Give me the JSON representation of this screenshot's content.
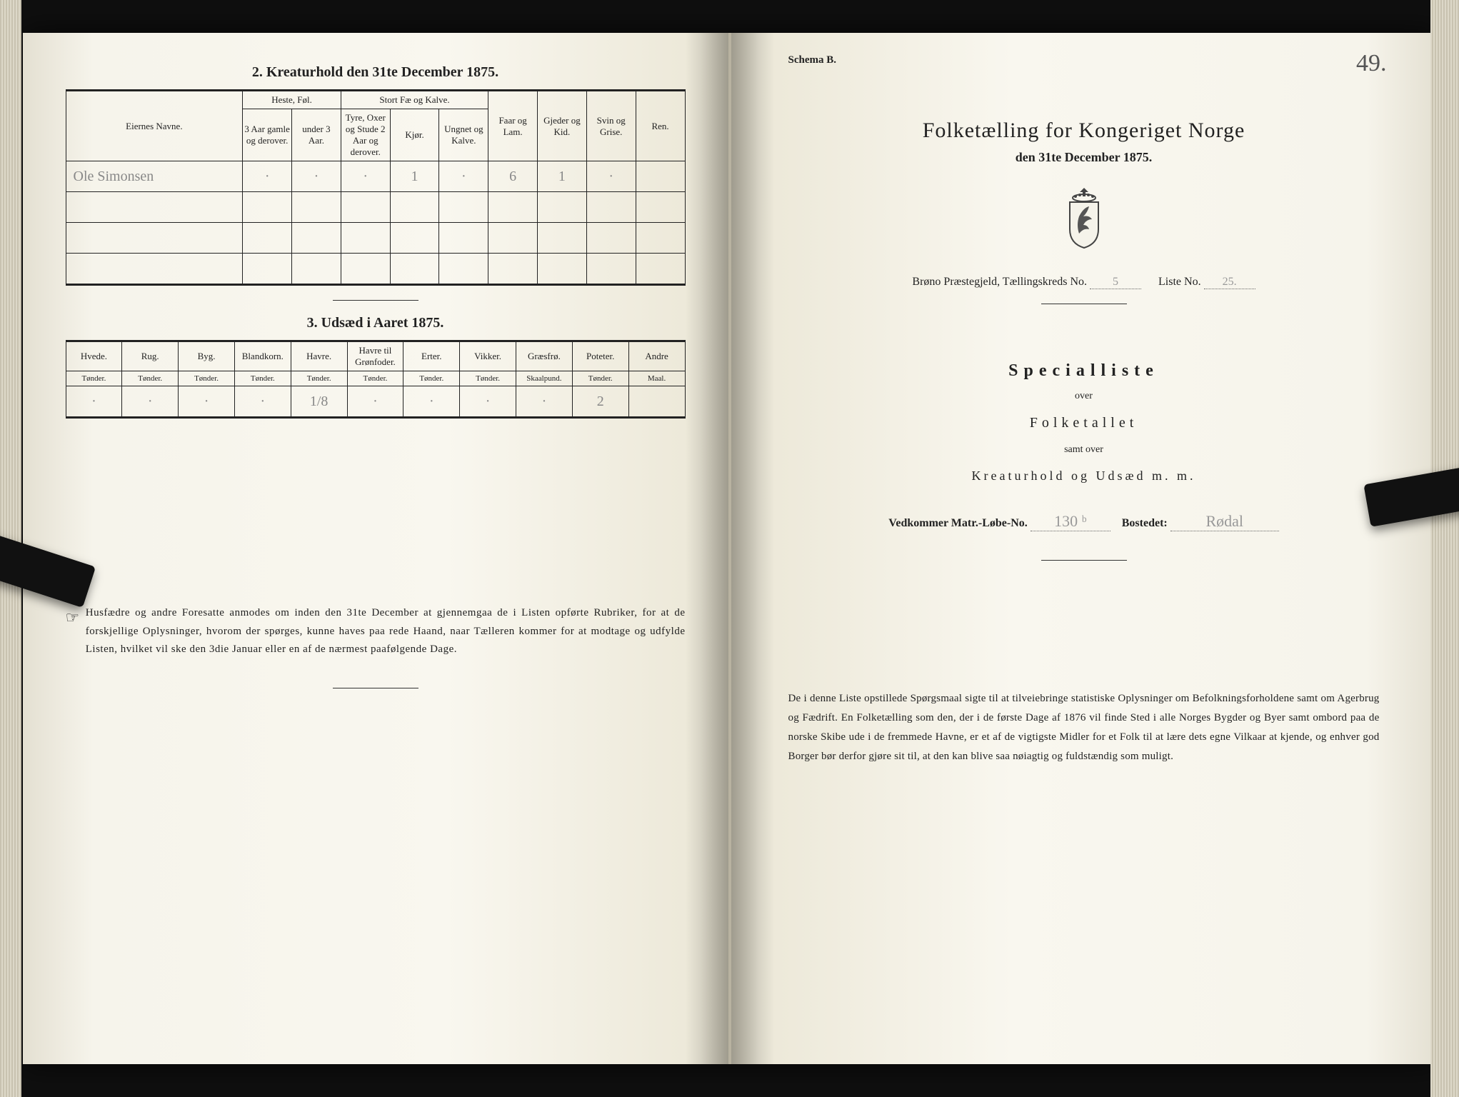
{
  "left": {
    "section2_title": "2.  Kreaturhold den 31te December 1875.",
    "table2": {
      "col_eier": "Eiernes Navne.",
      "group_heste": "Heste, Føl.",
      "group_stort": "Stort Fæ og Kalve.",
      "col_faar": "Faar og Lam.",
      "col_gjeder": "Gjeder og Kid.",
      "col_svin": "Svin og Grise.",
      "col_ren": "Ren.",
      "sub_h1": "3 Aar gamle og derover.",
      "sub_h2": "under 3 Aar.",
      "sub_s1": "Tyre, Oxer og Stude 2 Aar og derover.",
      "sub_s2": "Kjør.",
      "sub_s3": "Ungnet og Kalve.",
      "row1": {
        "name": "Ole Simonsen",
        "c1": "·",
        "c2": "·",
        "c3": "·",
        "c4": "1",
        "c5": "·",
        "c6": "6",
        "c7": "1",
        "c8": "·",
        "c9": ""
      }
    },
    "section3_title": "3.  Udsæd i Aaret 1875.",
    "table3": {
      "cols": [
        "Hvede.",
        "Rug.",
        "Byg.",
        "Blandkorn.",
        "Havre.",
        "Havre til Grønfoder.",
        "Erter.",
        "Vikker.",
        "Græsfrø.",
        "Poteter.",
        "Andre"
      ],
      "units": [
        "Tønder.",
        "Tønder.",
        "Tønder.",
        "Tønder.",
        "Tønder.",
        "Tønder.",
        "Tønder.",
        "Tønder.",
        "Skaalpund.",
        "Tønder.",
        "Maal."
      ],
      "row": [
        "·",
        "·",
        "·",
        "·",
        "1/8",
        "·",
        "·",
        "·",
        "·",
        "2",
        ""
      ]
    },
    "note": "Husfædre og andre Foresatte anmodes om inden den 31te December at gjennemgaa de i Listen opførte Rubriker, for at de forskjellige Oplysninger, hvorom der spørges, kunne haves paa rede Haand, naar Tælleren kommer for at modtage og udfylde Listen, hvilket vil ske den 3die Januar eller en af de nærmest paafølgende Dage."
  },
  "right": {
    "schema": "Schema B.",
    "page_num": "49.",
    "title": "Folketælling for Kongeriget Norge",
    "subtitle": "den 31te December 1875.",
    "parish_line_a": "Brøno Præstegjeld, Tællingskreds No.",
    "parish_val_a": "5",
    "parish_line_b": "Liste No.",
    "parish_val_b": "25.",
    "special": "Specialliste",
    "over": "over",
    "folketallet": "Folketallet",
    "samt": "samt over",
    "kreatur": "Kreaturhold og Udsæd m. m.",
    "matr_a": "Vedkommer Matr.-Løbe-No.",
    "matr_val": "130 ᵇ",
    "matr_b": "Bostedet:",
    "bosted_val": "Rødal",
    "note": "De i denne Liste opstillede Spørgsmaal sigte til at tilveiebringe statistiske Oplysninger om Befolkningsforholdene samt om Agerbrug og Fædrift. En Folketælling som den, der i de første Dage af 1876 vil finde Sted i alle Norges Bygder og Byer samt ombord paa de norske Skibe ude i de fremmede Havne, er et af de vigtigste Midler for et Folk til at lære dets egne Vilkaar at kjende, og enhver god Borger bør derfor gjøre sit til, at den kan blive saa nøiagtig og fuldstændig som muligt."
  }
}
